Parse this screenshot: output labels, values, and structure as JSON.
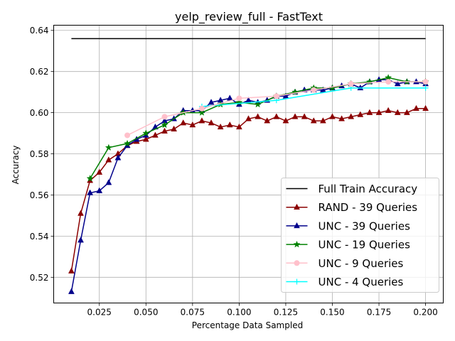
{
  "chart_data": {
    "type": "line",
    "title": "yelp_review_full - FastText",
    "xlabel": "Percentage Data Sampled",
    "ylabel": "Accuracy",
    "xlim": [
      0.0005,
      0.2095
    ],
    "ylim": [
      0.5075,
      0.6425
    ],
    "grid": true,
    "legend_position": "lower-right",
    "xticks": [
      0.025,
      0.05,
      0.075,
      0.1,
      0.125,
      0.15,
      0.175,
      0.2
    ],
    "xtick_labels": [
      "0.025",
      "0.050",
      "0.075",
      "0.100",
      "0.125",
      "0.150",
      "0.175",
      "0.200"
    ],
    "yticks": [
      0.52,
      0.54,
      0.56,
      0.58,
      0.6,
      0.62,
      0.64
    ],
    "ytick_labels": [
      "0.52",
      "0.54",
      "0.56",
      "0.58",
      "0.60",
      "0.62",
      "0.64"
    ],
    "series": [
      {
        "name": "Full Train Accuracy",
        "color": "#000000",
        "marker": "none",
        "x": [
          0.01,
          0.2
        ],
        "y": [
          0.636,
          0.636
        ]
      },
      {
        "name": "RAND - 39 Queries",
        "color": "#8b0000",
        "marker": "triangle",
        "x": [
          0.01,
          0.015,
          0.02,
          0.025,
          0.03,
          0.035,
          0.04,
          0.045,
          0.05,
          0.055,
          0.06,
          0.065,
          0.07,
          0.075,
          0.08,
          0.085,
          0.09,
          0.095,
          0.1,
          0.105,
          0.11,
          0.115,
          0.12,
          0.125,
          0.13,
          0.135,
          0.14,
          0.145,
          0.15,
          0.155,
          0.16,
          0.165,
          0.17,
          0.175,
          0.18,
          0.185,
          0.19,
          0.195,
          0.2
        ],
        "y": [
          0.523,
          0.551,
          0.567,
          0.571,
          0.577,
          0.58,
          0.584,
          0.586,
          0.587,
          0.589,
          0.591,
          0.592,
          0.595,
          0.594,
          0.596,
          0.595,
          0.593,
          0.594,
          0.593,
          0.597,
          0.598,
          0.596,
          0.598,
          0.596,
          0.598,
          0.598,
          0.596,
          0.596,
          0.598,
          0.597,
          0.598,
          0.599,
          0.6,
          0.6,
          0.601,
          0.6,
          0.6,
          0.602,
          0.602
        ]
      },
      {
        "name": "UNC - 39 Queries",
        "color": "#00008b",
        "marker": "triangle",
        "x": [
          0.01,
          0.015,
          0.02,
          0.025,
          0.03,
          0.035,
          0.04,
          0.045,
          0.05,
          0.055,
          0.06,
          0.065,
          0.07,
          0.075,
          0.08,
          0.085,
          0.09,
          0.095,
          0.1,
          0.105,
          0.11,
          0.115,
          0.12,
          0.125,
          0.13,
          0.135,
          0.14,
          0.145,
          0.15,
          0.155,
          0.16,
          0.165,
          0.17,
          0.175,
          0.18,
          0.185,
          0.19,
          0.195,
          0.2
        ],
        "y": [
          0.513,
          0.538,
          0.561,
          0.562,
          0.566,
          0.578,
          0.584,
          0.587,
          0.589,
          0.593,
          0.596,
          0.597,
          0.601,
          0.601,
          0.601,
          0.605,
          0.606,
          0.607,
          0.604,
          0.606,
          0.605,
          0.606,
          0.608,
          0.608,
          0.61,
          0.611,
          0.611,
          0.611,
          0.612,
          0.613,
          0.614,
          0.612,
          0.615,
          0.616,
          0.616,
          0.614,
          0.615,
          0.615,
          0.614
        ]
      },
      {
        "name": "UNC - 19 Queries",
        "color": "#008000",
        "marker": "star",
        "x": [
          0.02,
          0.03,
          0.04,
          0.05,
          0.06,
          0.07,
          0.08,
          0.09,
          0.1,
          0.11,
          0.12,
          0.13,
          0.14,
          0.15,
          0.16,
          0.17,
          0.18,
          0.19,
          0.2
        ],
        "y": [
          0.568,
          0.583,
          0.585,
          0.59,
          0.594,
          0.6,
          0.6,
          0.604,
          0.605,
          0.604,
          0.608,
          0.61,
          0.612,
          0.612,
          0.614,
          0.615,
          0.617,
          0.615,
          0.615
        ]
      },
      {
        "name": "UNC - 9 Queries",
        "color": "#ffc0cb",
        "marker": "circle",
        "x": [
          0.04,
          0.06,
          0.08,
          0.1,
          0.12,
          0.14,
          0.16,
          0.18,
          0.2
        ],
        "y": [
          0.589,
          0.598,
          0.602,
          0.607,
          0.608,
          0.611,
          0.614,
          0.615,
          0.615
        ]
      },
      {
        "name": "UNC - 4 Queries",
        "color": "#00ffff",
        "marker": "plus",
        "x": [
          0.08,
          0.12,
          0.16,
          0.2
        ],
        "y": [
          0.603,
          0.606,
          0.612,
          0.612
        ]
      }
    ]
  }
}
